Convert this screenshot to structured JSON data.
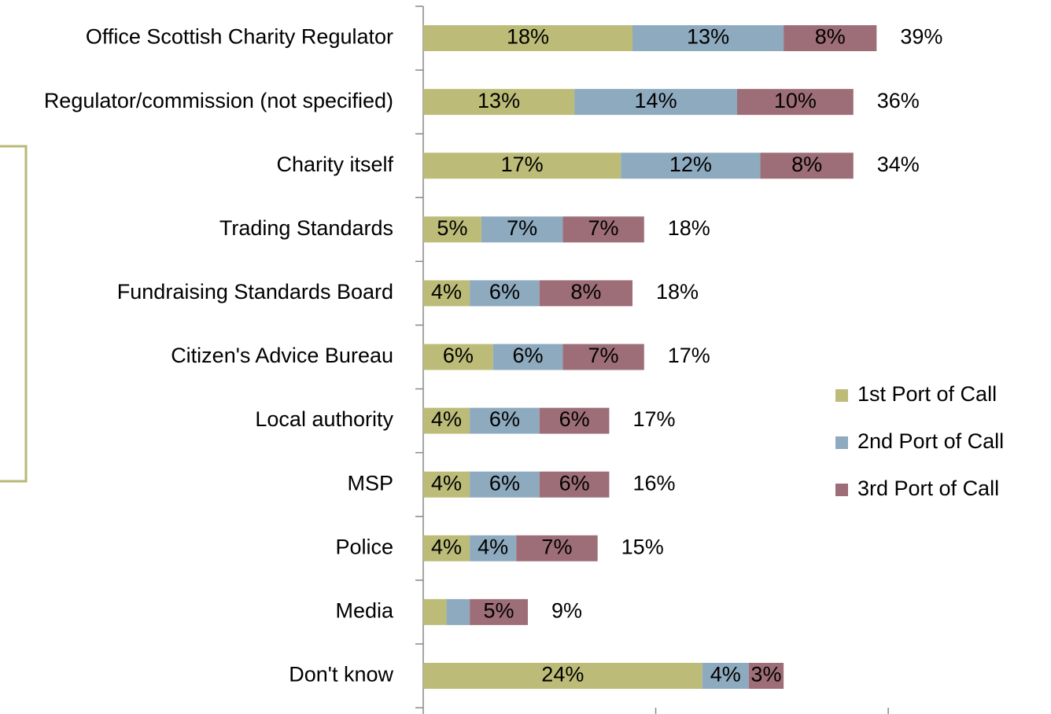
{
  "chart_data": {
    "type": "stacked-bar-horizontal",
    "categories": [
      "Office Scottish Charity Regulator",
      "Regulator/commission (not specified)",
      "Charity itself",
      "Trading Standards",
      "Fundraising Standards Board",
      "Citizen's Advice Bureau",
      "Local authority",
      "MSP",
      "Police",
      "Media",
      "Don't know"
    ],
    "series": [
      {
        "name": "1st Port of Call",
        "color": "#bcbc78",
        "values": [
          18,
          13,
          17,
          5,
          4,
          6,
          4,
          4,
          4,
          2,
          24
        ],
        "value_labels": [
          "18%",
          "13%",
          "17%",
          "5%",
          "4%",
          "6%",
          "4%",
          "4%",
          "4%",
          null,
          "24%"
        ]
      },
      {
        "name": "2nd Port of Call",
        "color": "#8eaabe",
        "values": [
          13,
          14,
          12,
          7,
          6,
          6,
          6,
          6,
          4,
          2,
          4
        ],
        "value_labels": [
          "13%",
          "14%",
          "12%",
          "7%",
          "6%",
          "6%",
          "6%",
          "6%",
          "4%",
          null,
          "4%"
        ]
      },
      {
        "name": "3rd Port of Call",
        "color": "#9e6e78",
        "values": [
          8,
          10,
          8,
          7,
          8,
          7,
          6,
          6,
          7,
          5,
          3
        ],
        "value_labels": [
          "8%",
          "10%",
          "8%",
          "7%",
          "8%",
          "7%",
          "6%",
          "6%",
          "7%",
          "5%",
          "3%"
        ]
      }
    ],
    "totals": {
      "values": [
        39,
        36,
        34,
        18,
        18,
        17,
        17,
        16,
        15,
        9,
        31
      ],
      "value_labels": [
        "39%",
        "36%",
        "34%",
        "18%",
        "18%",
        "17%",
        "17%",
        "16%",
        "15%",
        "9%",
        null
      ]
    },
    "xlim": [
      0,
      54
    ],
    "xticks": [
      0,
      20,
      40
    ],
    "legend": "right"
  }
}
